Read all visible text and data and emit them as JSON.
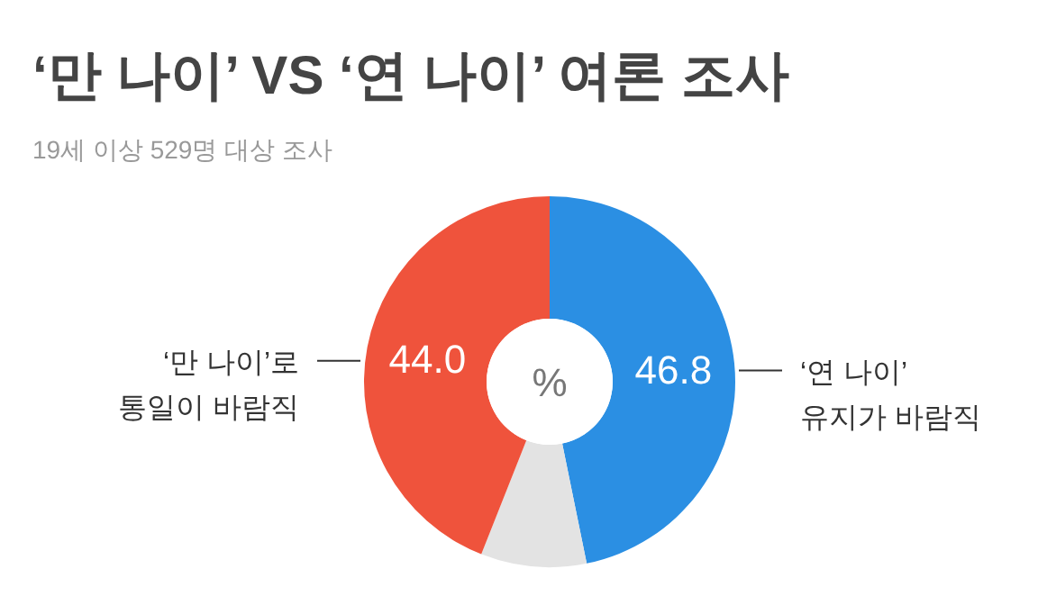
{
  "chart_data": {
    "type": "donut",
    "title": "‘만 나이’ VS ‘연 나이’ 여론 조사",
    "subtitle": "19세 이상 529명 대상 조사",
    "categories": [
      "‘연 나이’\n유지가 바람직",
      null,
      "‘만 나이’로\n통일이 바람직"
    ],
    "values": [
      46.8,
      9.2,
      44.0
    ],
    "colors": [
      "#2b8fe3",
      "#e3e3e3",
      "#ef533c"
    ],
    "value_labels": [
      "46.8",
      null,
      "44.0"
    ],
    "annotations": [
      "%"
    ]
  }
}
